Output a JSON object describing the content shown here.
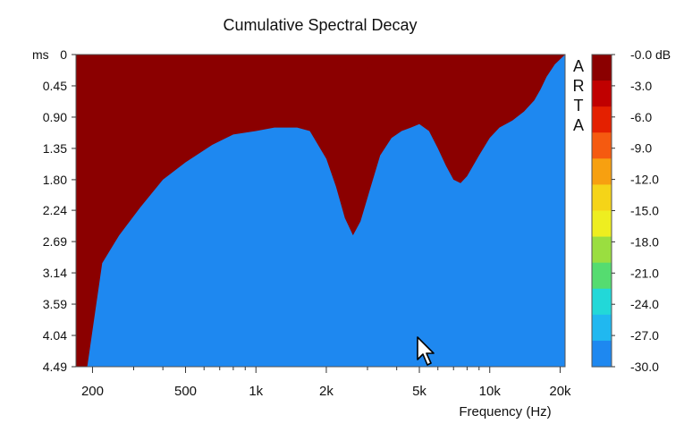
{
  "chart_data": {
    "type": "heatmap",
    "title": "Cumulative Spectral Decay",
    "xlabel": "Frequency (Hz)",
    "ylabel": "ms",
    "x_scale": "log",
    "xlim": [
      170,
      21000
    ],
    "ylim": [
      0,
      4.49
    ],
    "x_ticks": [
      200,
      500,
      1000,
      2000,
      5000,
      10000,
      20000
    ],
    "x_tick_labels": [
      "200",
      "500",
      "1k",
      "2k",
      "5k",
      "10k",
      "20k"
    ],
    "y_ticks": [
      0,
      0.45,
      0.9,
      1.35,
      1.8,
      2.24,
      2.69,
      3.14,
      3.59,
      4.04,
      4.49
    ],
    "y_tick_labels": [
      "0",
      "0.45",
      "0.90",
      "1.35",
      "1.80",
      "2.24",
      "2.69",
      "3.14",
      "3.59",
      "4.04",
      "4.49"
    ],
    "colorbar": {
      "unit": "dB",
      "levels": [
        -0.0,
        -3.0,
        -6.0,
        -9.0,
        -12.0,
        -15.0,
        -18.0,
        -21.0,
        -24.0,
        -27.0,
        -30.0
      ],
      "labels": [
        "-0.0 dB",
        "-3.0",
        "-6.0",
        "-9.0",
        "-12.0",
        "-15.0",
        "-18.0",
        "-21.0",
        "-24.0",
        "-27.0",
        "-30.0"
      ],
      "colors": [
        "#8b0000",
        "#c00000",
        "#e42000",
        "#f55a10",
        "#f7a010",
        "#f5d418",
        "#eeee20",
        "#9ade40",
        "#55dc70",
        "#22d8d8",
        "#20b8f0",
        "#1e88f0"
      ]
    },
    "watermark": "ARTA"
  }
}
